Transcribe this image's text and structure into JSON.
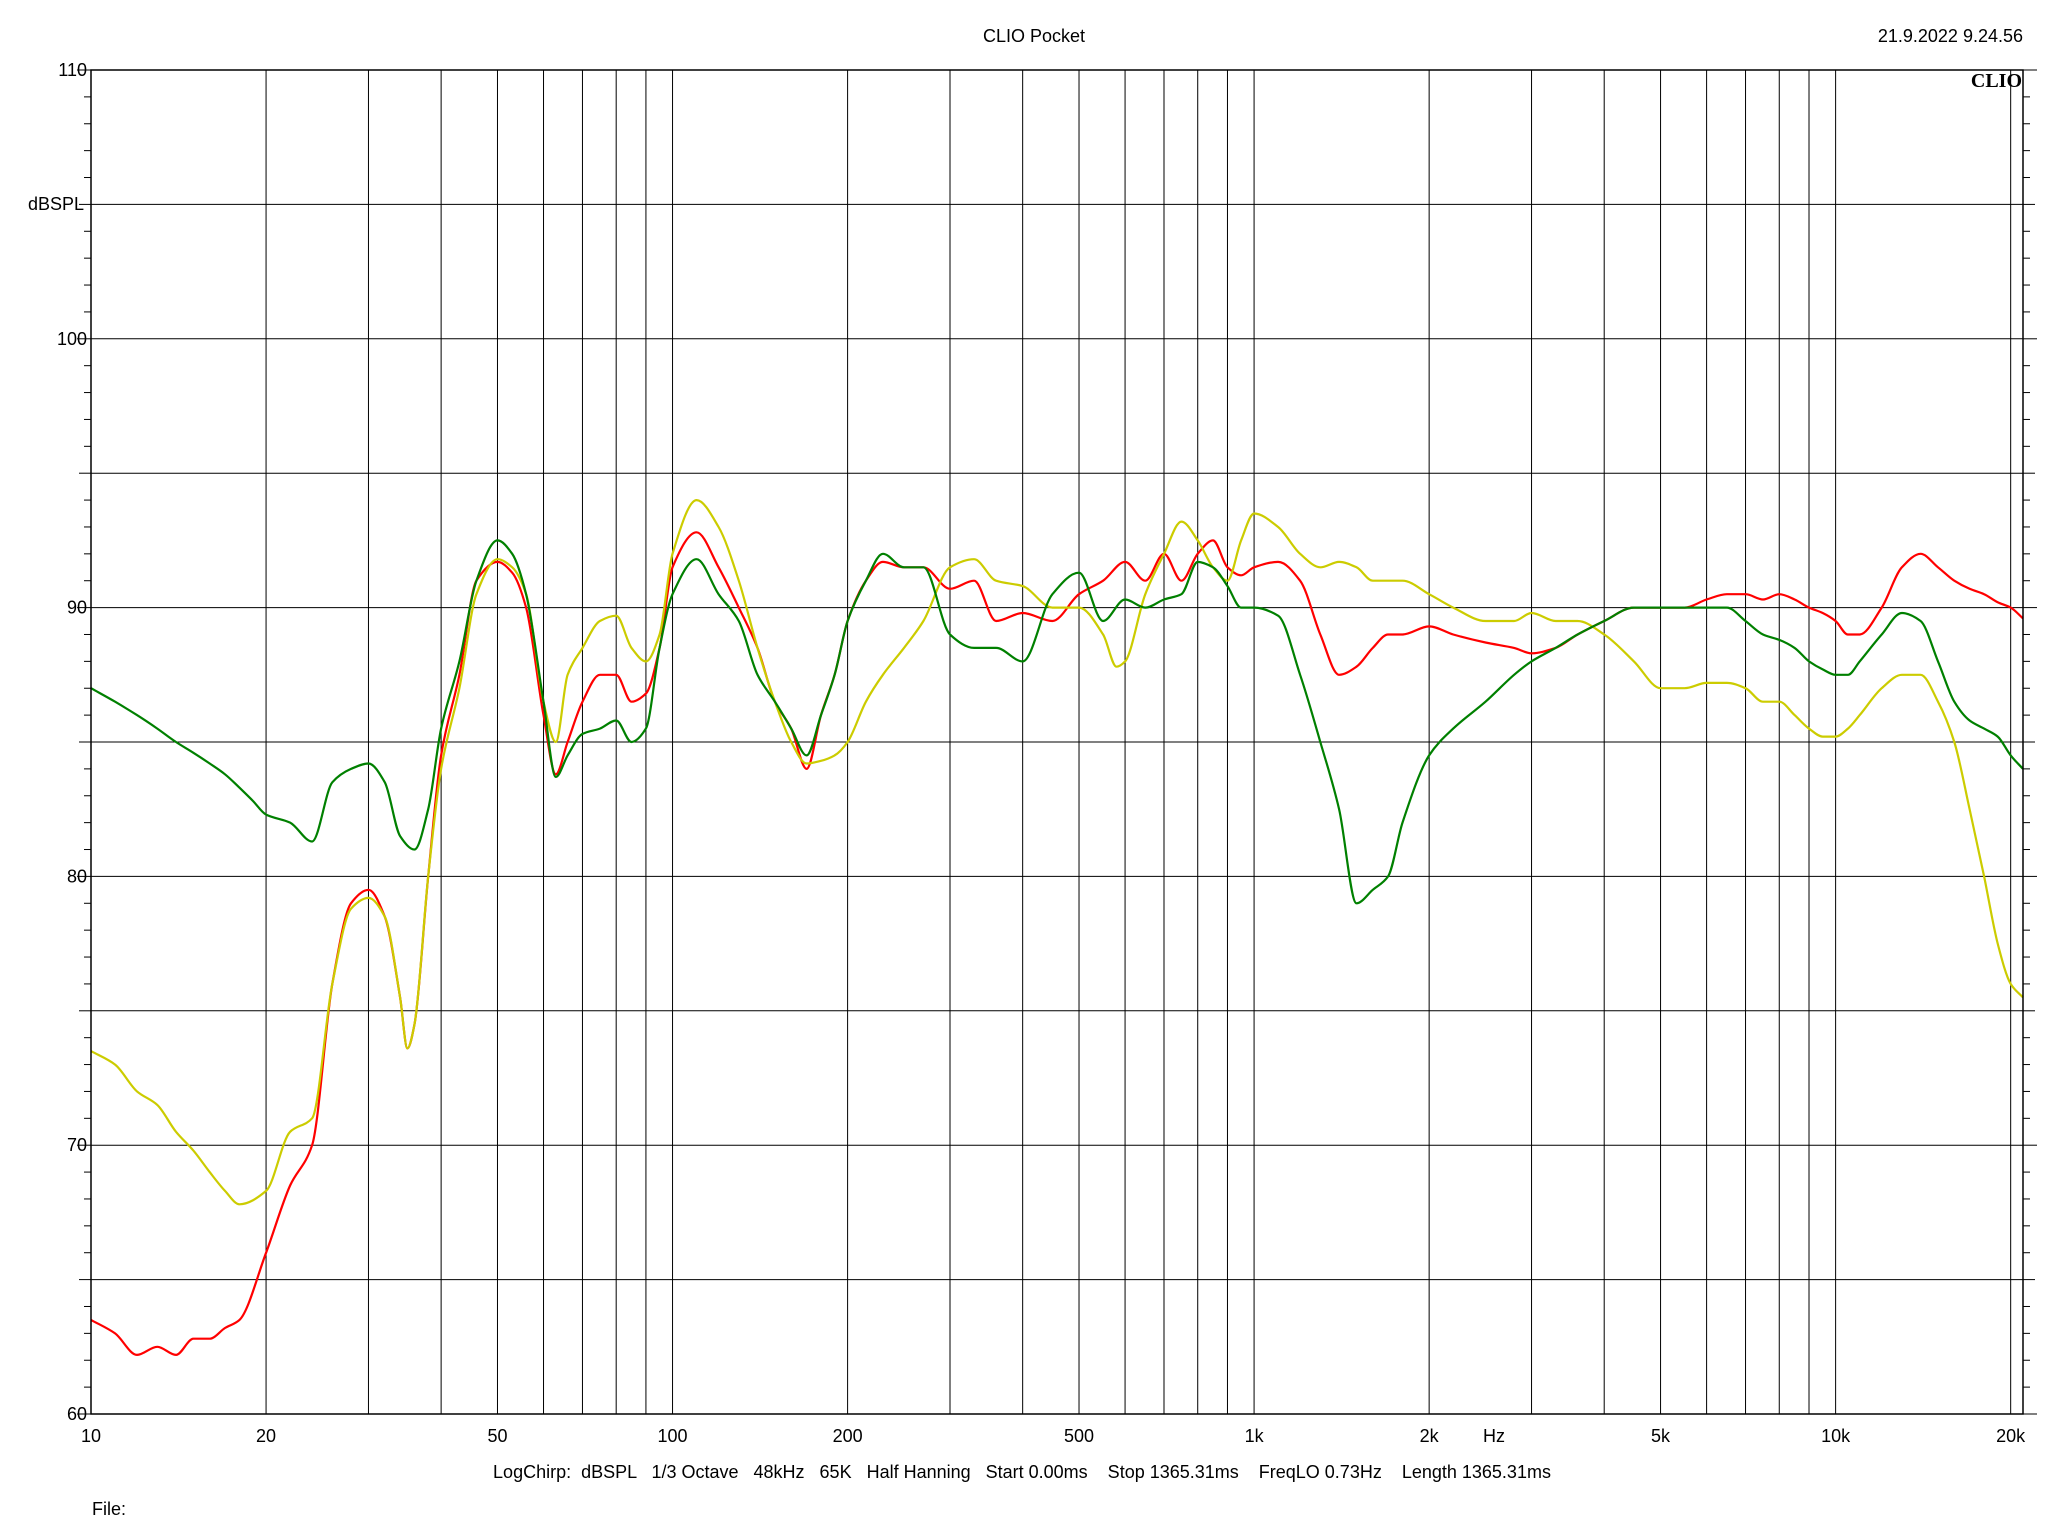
{
  "header": {
    "title": "CLIO Pocket",
    "timestamp": "21.9.2022 9.24.56",
    "logo": "CLIO"
  },
  "footer": {
    "info": "LogChirp:  dBSPL   1/3 Octave   48kHz   65K   Half Hanning   Start 0.00ms    Stop 1365.31ms    FreqLO 0.73Hz    Length 1365.31ms",
    "file_label": "File:"
  },
  "chart_data": {
    "type": "line",
    "title": "CLIO Pocket",
    "xlabel": "Hz",
    "ylabel": "dBSPL",
    "xscale": "log",
    "xlim": [
      10,
      21000
    ],
    "ylim": [
      60,
      110
    ],
    "grid": true,
    "y_major_ticks": [
      60,
      70,
      80,
      90,
      100,
      110
    ],
    "y_minor_step": 5,
    "x_tick_labels": [
      {
        "value": 10,
        "label": "10"
      },
      {
        "value": 20,
        "label": "20"
      },
      {
        "value": 50,
        "label": "50"
      },
      {
        "value": 100,
        "label": "100"
      },
      {
        "value": 200,
        "label": "200"
      },
      {
        "value": 500,
        "label": "500"
      },
      {
        "value": 1000,
        "label": "1k"
      },
      {
        "value": 2000,
        "label": "2k"
      },
      {
        "value": 5000,
        "label": "5k"
      },
      {
        "value": 10000,
        "label": "10k"
      },
      {
        "value": 20000,
        "label": "20k"
      }
    ],
    "series": [
      {
        "color": "#ff0000",
        "x": [
          10,
          11,
          12,
          13,
          14,
          15,
          16,
          17,
          18,
          20,
          22,
          24,
          26,
          28,
          30,
          32,
          34,
          35,
          36,
          38,
          40,
          43,
          46,
          50,
          53,
          56,
          60,
          63,
          66,
          70,
          75,
          80,
          85,
          90,
          95,
          100,
          110,
          120,
          130,
          140,
          150,
          160,
          170,
          180,
          190,
          200,
          215,
          230,
          250,
          270,
          300,
          330,
          360,
          400,
          450,
          500,
          550,
          600,
          650,
          700,
          750,
          800,
          850,
          900,
          950,
          1000,
          1100,
          1200,
          1300,
          1400,
          1500,
          1600,
          1700,
          1800,
          2000,
          2200,
          2500,
          2800,
          3000,
          3300,
          3600,
          4000,
          4500,
          5000,
          5500,
          6000,
          6500,
          7000,
          7500,
          8000,
          8500,
          9000,
          9500,
          10000,
          10500,
          11000,
          12000,
          13000,
          14000,
          15000,
          16000,
          17000,
          18000,
          19000,
          20000,
          21000
        ],
        "y": [
          63.5,
          63.0,
          62.2,
          62.5,
          62.2,
          62.8,
          62.8,
          63.2,
          63.5,
          66.0,
          68.5,
          70.0,
          76.0,
          79.0,
          79.5,
          78.5,
          75.5,
          73.6,
          74.5,
          80.0,
          84.5,
          87.5,
          91.0,
          91.7,
          91.3,
          90.0,
          86.0,
          83.8,
          85.0,
          86.5,
          87.5,
          87.5,
          86.5,
          86.8,
          88.5,
          91.5,
          92.8,
          91.5,
          90.0,
          88.5,
          86.5,
          85.5,
          84.0,
          86.0,
          87.5,
          89.5,
          91.0,
          91.7,
          91.5,
          91.5,
          90.7,
          91.0,
          89.5,
          89.8,
          89.5,
          90.5,
          91.0,
          91.7,
          91.0,
          92.0,
          91.0,
          92.0,
          92.5,
          91.5,
          91.2,
          91.5,
          91.7,
          91.0,
          89.0,
          87.5,
          87.8,
          88.5,
          89.0,
          89.0,
          89.3,
          89.0,
          88.7,
          88.5,
          88.3,
          88.5,
          89.0,
          89.5,
          90.0,
          90.0,
          90.0,
          90.3,
          90.5,
          90.5,
          90.3,
          90.5,
          90.3,
          90.0,
          89.8,
          89.5,
          89.0,
          89.0,
          90.0,
          91.5,
          92.0,
          91.5,
          91.0,
          90.7,
          90.5,
          90.2,
          90.0,
          89.6
        ]
      },
      {
        "color": "#cccc00",
        "x": [
          10,
          11,
          12,
          13,
          14,
          15,
          16,
          17,
          18,
          20,
          22,
          24,
          26,
          28,
          30,
          32,
          34,
          35,
          36,
          38,
          40,
          43,
          46,
          50,
          53,
          56,
          60,
          63,
          66,
          70,
          75,
          80,
          85,
          90,
          95,
          100,
          110,
          120,
          130,
          140,
          150,
          160,
          170,
          180,
          190,
          200,
          215,
          230,
          250,
          270,
          300,
          330,
          360,
          400,
          450,
          500,
          550,
          580,
          600,
          650,
          700,
          750,
          800,
          850,
          900,
          950,
          1000,
          1100,
          1200,
          1300,
          1400,
          1500,
          1600,
          1700,
          1800,
          2000,
          2200,
          2500,
          2800,
          3000,
          3300,
          3600,
          4000,
          4500,
          5000,
          5500,
          6000,
          6500,
          7000,
          7500,
          8000,
          8500,
          9000,
          9500,
          10000,
          10500,
          11000,
          12000,
          13000,
          14000,
          15000,
          16000,
          17000,
          18000,
          19000,
          20000,
          21000
        ],
        "y": [
          73.5,
          73.0,
          72.0,
          71.5,
          70.5,
          69.8,
          69.0,
          68.3,
          67.8,
          68.3,
          70.5,
          71.0,
          76.0,
          78.8,
          79.2,
          78.5,
          75.5,
          73.6,
          74.5,
          80.0,
          84.0,
          87.0,
          90.5,
          91.8,
          91.5,
          90.5,
          86.5,
          85.0,
          87.5,
          88.5,
          89.5,
          89.7,
          88.5,
          88.0,
          89.0,
          92.0,
          94.0,
          93.0,
          91.0,
          88.5,
          86.5,
          85.0,
          84.2,
          84.3,
          84.5,
          85.0,
          86.5,
          87.5,
          88.5,
          89.5,
          91.5,
          91.8,
          91.0,
          90.8,
          90.0,
          90.0,
          89.0,
          87.8,
          88.0,
          90.5,
          92.0,
          93.2,
          92.5,
          91.5,
          91.0,
          92.5,
          93.5,
          93.0,
          92.0,
          91.5,
          91.7,
          91.5,
          91.0,
          91.0,
          91.0,
          90.5,
          90.0,
          89.5,
          89.5,
          89.8,
          89.5,
          89.5,
          89.0,
          88.0,
          87.0,
          87.0,
          87.2,
          87.2,
          87.0,
          86.5,
          86.5,
          86.0,
          85.5,
          85.2,
          85.2,
          85.5,
          86.0,
          87.0,
          87.5,
          87.5,
          86.5,
          85.0,
          82.5,
          80.0,
          77.5,
          76.0,
          75.5
        ]
      },
      {
        "color": "#008000",
        "x": [
          10,
          11,
          12,
          13,
          14,
          15,
          16,
          17,
          18,
          19,
          20,
          22,
          24,
          26,
          28,
          30,
          32,
          34,
          36,
          38,
          40,
          43,
          46,
          50,
          53,
          56,
          60,
          63,
          66,
          70,
          75,
          80,
          85,
          90,
          95,
          100,
          110,
          120,
          130,
          140,
          150,
          160,
          170,
          180,
          190,
          200,
          215,
          230,
          250,
          270,
          300,
          330,
          360,
          400,
          450,
          500,
          550,
          600,
          650,
          700,
          750,
          800,
          850,
          900,
          950,
          1000,
          1100,
          1200,
          1300,
          1400,
          1500,
          1600,
          1700,
          1800,
          2000,
          2200,
          2500,
          2800,
          3000,
          3300,
          3600,
          4000,
          4500,
          5000,
          5500,
          6000,
          6500,
          7000,
          7500,
          8000,
          8500,
          9000,
          9500,
          10000,
          10500,
          11000,
          12000,
          13000,
          14000,
          15000,
          16000,
          17000,
          18000,
          19000,
          20000,
          21000
        ],
        "y": [
          87.0,
          86.5,
          86.0,
          85.5,
          85.0,
          84.6,
          84.2,
          83.8,
          83.3,
          82.8,
          82.3,
          82.0,
          81.3,
          83.5,
          84.0,
          84.2,
          83.5,
          81.5,
          81.0,
          82.5,
          85.5,
          88.0,
          91.0,
          92.5,
          92.0,
          90.5,
          86.5,
          83.7,
          84.5,
          85.3,
          85.5,
          85.8,
          85.0,
          85.5,
          88.5,
          90.5,
          91.8,
          90.5,
          89.5,
          87.5,
          86.5,
          85.5,
          84.5,
          86.0,
          87.5,
          89.5,
          91.0,
          92.0,
          91.5,
          91.5,
          89.0,
          88.5,
          88.5,
          88.0,
          90.5,
          91.3,
          89.5,
          90.3,
          90.0,
          90.3,
          90.5,
          91.7,
          91.5,
          90.8,
          90.0,
          90.0,
          89.7,
          87.5,
          85.0,
          82.5,
          79.0,
          79.5,
          80.0,
          82.0,
          84.5,
          85.5,
          86.5,
          87.5,
          88.0,
          88.5,
          89.0,
          89.5,
          90.0,
          90.0,
          90.0,
          90.0,
          90.0,
          89.5,
          89.0,
          88.8,
          88.5,
          88.0,
          87.7,
          87.5,
          87.5,
          88.0,
          89.0,
          89.8,
          89.5,
          88.0,
          86.5,
          85.8,
          85.5,
          85.2,
          84.5,
          84.0
        ]
      }
    ]
  }
}
